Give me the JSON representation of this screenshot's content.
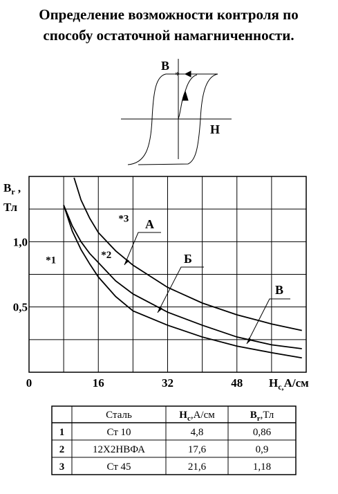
{
  "title_lines": [
    "Определение возможности контроля по",
    "способу остаточной намагниченности."
  ],
  "inset": {
    "b_label": "B",
    "h_label": "H"
  },
  "chart_data": {
    "type": "line",
    "y_label": {
      "symbol": "B",
      "sub": "r",
      "sep": " ,",
      "unit": "Тл"
    },
    "x_label": {
      "symbol": "H",
      "sub": "c,",
      "unit": "А/см"
    },
    "xlim": [
      0,
      64
    ],
    "ylim": [
      0,
      1.5
    ],
    "xticks": [
      0,
      16,
      32,
      48
    ],
    "yticks": [
      {
        "value": 0.5,
        "label": "0,5"
      },
      {
        "value": 1.0,
        "label": "1,0"
      }
    ],
    "xminor": [
      8,
      24,
      40,
      56
    ],
    "yminor": [
      0.25,
      0.75,
      1.25
    ],
    "grid": true,
    "color": "#000000",
    "series": [
      {
        "name": "А",
        "x": [
          10.4,
          12,
          14,
          16,
          20,
          24,
          32,
          40,
          48,
          56,
          63
        ],
        "values": [
          1.49,
          1.32,
          1.18,
          1.07,
          0.93,
          0.82,
          0.65,
          0.53,
          0.44,
          0.37,
          0.32
        ]
      },
      {
        "name": "Б",
        "x": [
          8,
          10,
          12,
          14,
          16,
          20,
          24,
          32,
          40,
          48,
          56,
          63
        ],
        "values": [
          1.28,
          1.12,
          1.0,
          0.91,
          0.84,
          0.7,
          0.6,
          0.46,
          0.36,
          0.27,
          0.21,
          0.18
        ]
      },
      {
        "name": "В",
        "x": [
          8,
          10,
          12,
          14,
          16,
          20,
          24,
          32,
          40,
          48,
          56,
          63
        ],
        "values": [
          1.28,
          1.08,
          0.94,
          0.83,
          0.73,
          0.58,
          0.47,
          0.36,
          0.27,
          0.2,
          0.15,
          0.11
        ]
      }
    ],
    "annotations": [
      {
        "text": "*1",
        "x": 4.8,
        "y": 0.86
      },
      {
        "text": "*2",
        "x": 17.6,
        "y": 0.9
      },
      {
        "text": "*3",
        "x": 21.6,
        "y": 1.18
      }
    ]
  },
  "table": {
    "header": [
      "Сталь",
      {
        "symbol": "H",
        "sub": "c",
        "unit": ",А/см"
      },
      {
        "symbol": "B",
        "sub": "r",
        "unit": ",Тл"
      }
    ],
    "rows": [
      [
        "1",
        "Ст 10",
        "4,8",
        "0,86"
      ],
      [
        "2",
        "12Х2НВФА",
        "17,6",
        "0,9"
      ],
      [
        "3",
        "Ст 45",
        "21,6",
        "1,18"
      ]
    ]
  }
}
